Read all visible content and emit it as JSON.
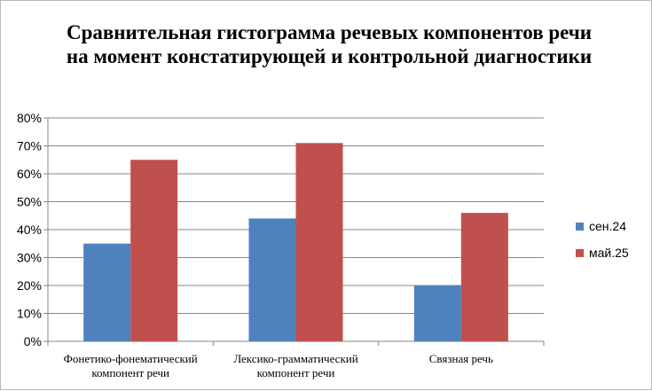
{
  "chart_data": {
    "type": "bar",
    "title": "Сравнительная гистограмма речевых компонентов речи на момент констатирующей и контрольной диагностики",
    "categories": [
      [
        "Фонетико-фонематический",
        "компонент речи"
      ],
      [
        "Лексико-грамматический",
        "компонент речи"
      ],
      [
        "Связная речь"
      ]
    ],
    "series": [
      {
        "name": "сен.24",
        "color": "#4f81bd",
        "values": [
          0.35,
          0.44,
          0.2
        ]
      },
      {
        "name": "май.25",
        "color": "#c0504d",
        "values": [
          0.65,
          0.71,
          0.46
        ]
      }
    ],
    "ylim": [
      0,
      0.8
    ],
    "yticks": [
      "0%",
      "10%",
      "20%",
      "30%",
      "40%",
      "50%",
      "60%",
      "70%",
      "80%"
    ],
    "grid": true,
    "legend": "right",
    "xlabel": "",
    "ylabel": ""
  }
}
